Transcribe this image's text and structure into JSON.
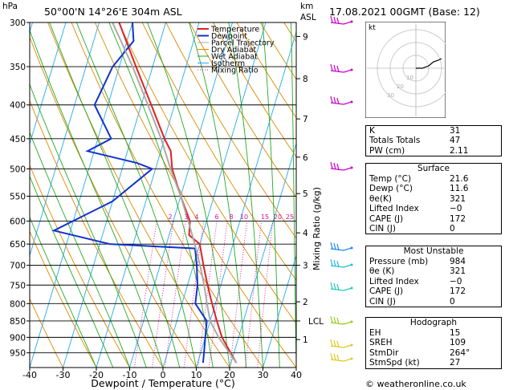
{
  "header": {
    "hpa_label": "hPa",
    "location": "50°00'N  14°26'E  304m  ASL",
    "km_label": "km",
    "asl_label": "ASL",
    "datetime": "17.08.2021  00GMT  (Base: 12)"
  },
  "footer": {
    "copyright": "© weatheronline.co.uk"
  },
  "hodograph": {
    "label": "kt",
    "ring_labels": [
      "10",
      "20",
      "30"
    ]
  },
  "indices": {
    "rows": [
      {
        "label": "K",
        "value": "31"
      },
      {
        "label": "Totals Totals",
        "value": "47"
      },
      {
        "label": "PW (cm)",
        "value": "2.11"
      }
    ]
  },
  "surface": {
    "title": "Surface",
    "rows": [
      {
        "label": "Temp (°C)",
        "value": "21.6"
      },
      {
        "label": "Dewp (°C)",
        "value": "11.6"
      },
      {
        "label": "θe(K)",
        "value": "321"
      },
      {
        "label": "Lifted Index",
        "value": "−0"
      },
      {
        "label": "CAPE (J)",
        "value": "172"
      },
      {
        "label": "CIN (J)",
        "value": "0"
      }
    ]
  },
  "most_unstable": {
    "title": "Most Unstable",
    "rows": [
      {
        "label": "Pressure (mb)",
        "value": "984"
      },
      {
        "label": "θe (K)",
        "value": "321"
      },
      {
        "label": "Lifted Index",
        "value": "−0"
      },
      {
        "label": "CAPE (J)",
        "value": "172"
      },
      {
        "label": "CIN (J)",
        "value": "0"
      }
    ]
  },
  "hodo_table": {
    "title": "Hodograph",
    "rows": [
      {
        "label": "EH",
        "value": "15"
      },
      {
        "label": "SREH",
        "value": "109"
      },
      {
        "label": "StmDir",
        "value": "264°"
      },
      {
        "label": "StmSpd (kt)",
        "value": "27"
      }
    ]
  },
  "chart_data": {
    "type": "line",
    "xlabel": "Dewpoint / Temperature (°C)",
    "ylabel_right": "Mixing Ratio (g/kg)",
    "xlim": [
      -40,
      40
    ],
    "x_ticks": [
      -40,
      -30,
      -20,
      -10,
      0,
      10,
      20,
      30,
      40
    ],
    "pressure_levels": [
      300,
      350,
      400,
      450,
      500,
      550,
      600,
      650,
      700,
      750,
      800,
      850,
      900,
      950
    ],
    "pressure_range": [
      300,
      1000
    ],
    "km_ticks": [
      {
        "km": "1",
        "p": 907
      },
      {
        "km": "2",
        "p": 795
      },
      {
        "km": "3",
        "p": 700
      },
      {
        "km": "4",
        "p": 625
      },
      {
        "km": "5",
        "p": 545
      },
      {
        "km": "6",
        "p": 480
      },
      {
        "km": "7",
        "p": 420
      },
      {
        "km": "8",
        "p": 365
      },
      {
        "km": "9",
        "p": 315
      }
    ],
    "lcl": {
      "label": "LCL",
      "p": 850
    },
    "mixing_ratio_labels": [
      "2",
      "3",
      "4",
      "6",
      "8",
      "10",
      "15",
      "20",
      "25"
    ],
    "legend": [
      "Temperature",
      "Dewpoint",
      "Parcel Trajectory",
      "Dry Adiabat",
      "Wet Adiabat",
      "Isotherm",
      "Mixing Ratio"
    ],
    "colors": {
      "temperature": "#dd2222",
      "dewpoint": "#1133cc",
      "parcel": "#aaaaaa",
      "dry": "#dd8800",
      "wet": "#22aa22",
      "isotherm": "#22aaee",
      "mixing": "#dd1199"
    },
    "series": [
      {
        "name": "Temperature",
        "points": [
          [
            984,
            21.6
          ],
          [
            950,
            19
          ],
          [
            900,
            15
          ],
          [
            850,
            12
          ],
          [
            800,
            9
          ],
          [
            750,
            6
          ],
          [
            700,
            3
          ],
          [
            650,
            0
          ],
          [
            630,
            -4
          ],
          [
            600,
            -5
          ],
          [
            550,
            -10
          ],
          [
            500,
            -15
          ],
          [
            470,
            -17
          ],
          [
            450,
            -20
          ],
          [
            400,
            -27
          ],
          [
            350,
            -35
          ],
          [
            300,
            -44
          ]
        ]
      },
      {
        "name": "Dewpoint",
        "points": [
          [
            984,
            11.6
          ],
          [
            950,
            11
          ],
          [
            900,
            10
          ],
          [
            850,
            9
          ],
          [
            800,
            4
          ],
          [
            750,
            3
          ],
          [
            700,
            1
          ],
          [
            660,
            -1
          ],
          [
            650,
            -27
          ],
          [
            620,
            -45
          ],
          [
            560,
            -30
          ],
          [
            500,
            -21
          ],
          [
            490,
            -26
          ],
          [
            470,
            -42
          ],
          [
            450,
            -36
          ],
          [
            400,
            -44
          ],
          [
            350,
            -42
          ],
          [
            320,
            -38
          ],
          [
            300,
            -40
          ]
        ]
      },
      {
        "name": "Parcel Trajectory",
        "points": [
          [
            984,
            21.6
          ],
          [
            900,
            14
          ],
          [
            850,
            10
          ],
          [
            800,
            7.5
          ],
          [
            750,
            5
          ],
          [
            700,
            2
          ],
          [
            650,
            -1.5
          ],
          [
            600,
            -5.5
          ],
          [
            550,
            -10
          ],
          [
            500,
            -15.5
          ],
          [
            450,
            -21
          ],
          [
            400,
            -28
          ],
          [
            350,
            -36
          ],
          [
            300,
            -46
          ]
        ]
      }
    ]
  }
}
